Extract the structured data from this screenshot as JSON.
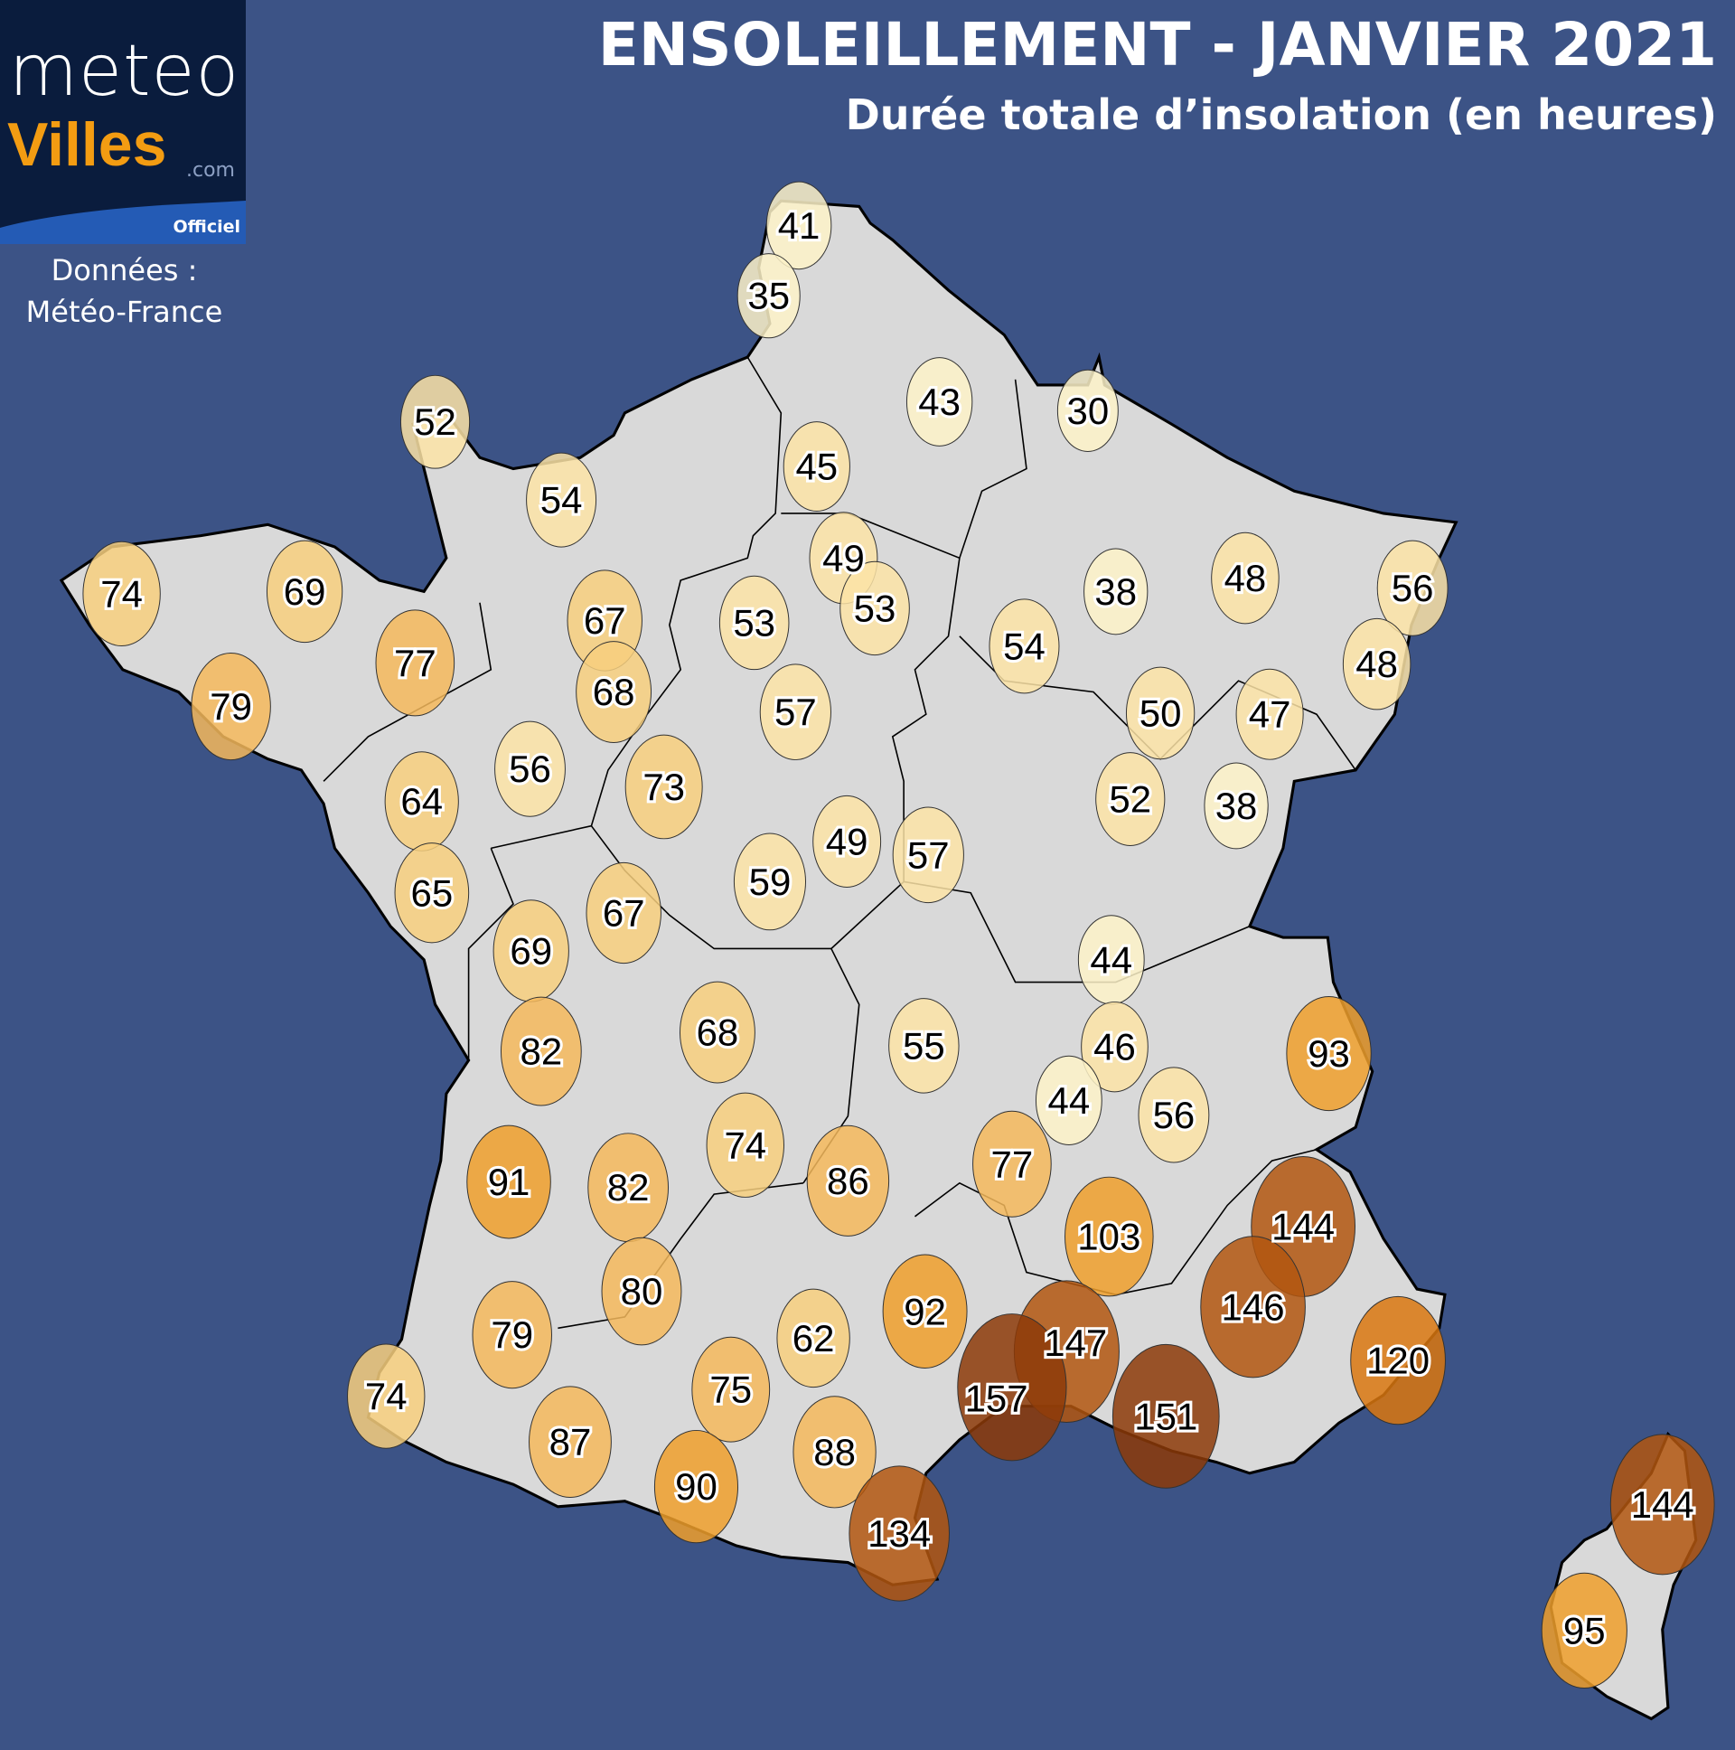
{
  "header": {
    "title": "ENSOLEILLEMENT - JANVIER 2021",
    "subtitle": "Durée totale d’insolation (en heures)"
  },
  "logo": {
    "text_top": "meteo",
    "text_main": "Villes",
    "text_suffix": ".com",
    "badge": "Officiel"
  },
  "source": {
    "line1": "Données :",
    "line2": "Météo-France"
  },
  "colors": {
    "background": "#3c5386",
    "land": "#d9d9d9",
    "scale": [
      "#fdf2c8",
      "#fbe3a6",
      "#f7cf7e",
      "#f4b85c",
      "#ef9f2c",
      "#d9770f",
      "#b2560f",
      "#8c3a08"
    ]
  },
  "stations": [
    41,
    35,
    52,
    43,
    30,
    45,
    54,
    49,
    53,
    74,
    69,
    67,
    53,
    38,
    48,
    56,
    54,
    77,
    68,
    57,
    48,
    79,
    50,
    47,
    73,
    56,
    64,
    52,
    38,
    49,
    57,
    59,
    65,
    67,
    69,
    44,
    82,
    68,
    55,
    46,
    93,
    44,
    56,
    91,
    82,
    74,
    86,
    77,
    103,
    144,
    146,
    80,
    79,
    62,
    92,
    147,
    157,
    151,
    120,
    74,
    75,
    87,
    88,
    90,
    134,
    144,
    95
  ]
}
